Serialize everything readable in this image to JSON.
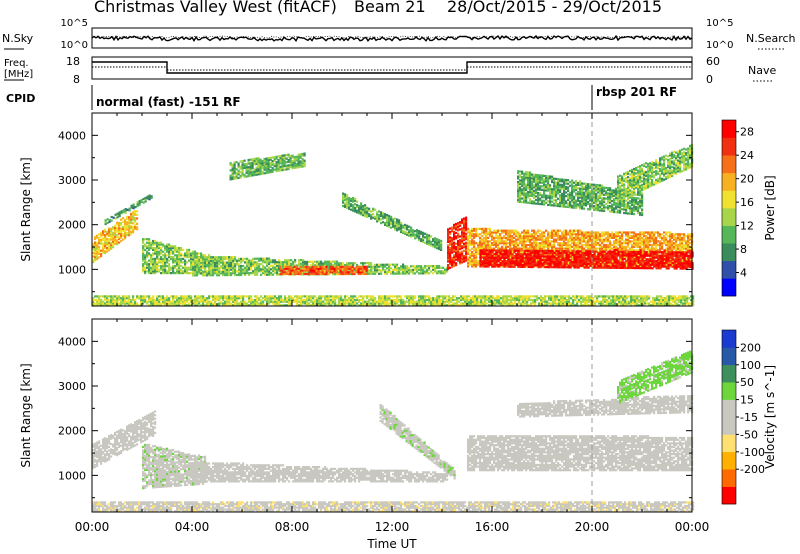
{
  "header": {
    "station": "Christmas Valley West (fitACF)",
    "beam": "Beam 21",
    "date_range": "28/Oct/2015 - 29/Oct/2015"
  },
  "noise_panel": {
    "left_label": "N.Sky",
    "right_label": "N.Search",
    "left_ticks": [
      "10^5",
      "10^0"
    ],
    "right_ticks": [
      "10^5",
      "10^0"
    ]
  },
  "freq_panel": {
    "left_label_1": "Freq.",
    "left_label_2": "[MHz]",
    "right_label": "Nave",
    "left_ticks": [
      "18",
      "8"
    ],
    "right_ticks": [
      "60",
      "0"
    ]
  },
  "cpid": {
    "label": "CPID",
    "mode1": "normal (fast) -151 RF",
    "mode2": "rbsp 201 RF"
  },
  "x_ticks": [
    "00:00",
    "04:00",
    "08:00",
    "12:00",
    "16:00",
    "20:00",
    "00:00"
  ],
  "x_label": "Time UT",
  "colors": {
    "power": [
      "#0000ff",
      "#2f4fa8",
      "#3b8c5c",
      "#55b65a",
      "#a8d64a",
      "#f0e030",
      "#f7b020",
      "#f57018",
      "#f03010",
      "#ff0000"
    ],
    "velocity": [
      "#ff0000",
      "#ff6a00",
      "#ffb000",
      "#ffe070",
      "#c8c8c0",
      "#c8c8c0",
      "#6cd63c",
      "#3e8f5c",
      "#2858a8",
      "#1a3ad0"
    ]
  },
  "chart_data": [
    {
      "type": "heatmap",
      "name": "power",
      "ylabel": "Slant Range [km]",
      "xlabel": "",
      "x_range_hours": [
        0,
        24
      ],
      "ylim": [
        180,
        4500
      ],
      "y_ticks": [
        1000,
        2000,
        3000,
        4000
      ],
      "colorbar": {
        "label": "Power [dB]",
        "ticks": [
          4,
          8,
          12,
          16,
          20,
          24,
          28
        ],
        "range": [
          0,
          30
        ]
      },
      "echo_regions": [
        {
          "t": [
            0.0,
            1.8
          ],
          "r0": [
            1150,
            1900
          ],
          "r1": [
            1700,
            2350
          ],
          "v": 18
        },
        {
          "t": [
            0.5,
            2.4
          ],
          "r0": [
            2000,
            2600
          ],
          "r1": [
            2100,
            2700
          ],
          "v": 9
        },
        {
          "t": [
            2.0,
            5.0
          ],
          "r0": [
            900,
            900
          ],
          "r1": [
            1700,
            1250
          ],
          "v": 12
        },
        {
          "t": [
            4.0,
            14.2
          ],
          "r0": [
            850,
            900
          ],
          "r1": [
            1300,
            1050
          ],
          "v": 12
        },
        {
          "t": [
            7.5,
            11.0
          ],
          "r0": [
            880,
            880
          ],
          "r1": [
            1050,
            1050
          ],
          "v": 24
        },
        {
          "t": [
            10.0,
            14.0
          ],
          "r0": [
            2400,
            1400
          ],
          "r1": [
            2700,
            1600
          ],
          "v": 10
        },
        {
          "t": [
            14.2,
            15.0
          ],
          "r0": [
            1000,
            1200
          ],
          "r1": [
            1900,
            2200
          ],
          "v": 26
        },
        {
          "t": [
            15.0,
            24.0
          ],
          "r0": [
            1050,
            1050
          ],
          "r1": [
            1900,
            1800
          ],
          "v": 20
        },
        {
          "t": [
            15.5,
            24.0
          ],
          "r0": [
            1050,
            1000
          ],
          "r1": [
            1450,
            1400
          ],
          "v": 28
        },
        {
          "t": [
            17.0,
            22.0
          ],
          "r0": [
            2500,
            2200
          ],
          "r1": [
            3200,
            2700
          ],
          "v": 10
        },
        {
          "t": [
            21.0,
            24.0
          ],
          "r0": [
            2500,
            3300
          ],
          "r1": [
            3100,
            3800
          ],
          "v": 12
        },
        {
          "t": [
            5.5,
            8.5
          ],
          "r0": [
            3000,
            3300
          ],
          "r1": [
            3400,
            3600
          ],
          "v": 11
        },
        {
          "t": [
            0.0,
            24.0
          ],
          "r0": [
            180,
            180
          ],
          "r1": [
            420,
            420
          ],
          "v": 14
        }
      ]
    },
    {
      "type": "heatmap",
      "name": "velocity",
      "ylabel": "Slant Range [km]",
      "xlabel": "Time UT",
      "x_range_hours": [
        0,
        24
      ],
      "ylim": [
        180,
        4500
      ],
      "y_ticks": [
        1000,
        2000,
        3000,
        4000
      ],
      "colorbar": {
        "label": "Velocity [m s^-1]",
        "ticks": [
          200,
          100,
          50,
          15,
          -15,
          -50,
          -100,
          -200
        ],
        "range": [
          -250,
          250
        ]
      },
      "echo_regions": [
        {
          "t": [
            0.0,
            2.5
          ],
          "r0": [
            1150,
            1900
          ],
          "r1": [
            1700,
            2450
          ],
          "v": 0
        },
        {
          "t": [
            2.0,
            4.5
          ],
          "r0": [
            700,
            800
          ],
          "r1": [
            1700,
            1400
          ],
          "v": 40
        },
        {
          "t": [
            4.0,
            14.2
          ],
          "r0": [
            850,
            850
          ],
          "r1": [
            1300,
            1050
          ],
          "v": 0
        },
        {
          "t": [
            11.5,
            14.5
          ],
          "r0": [
            2200,
            900
          ],
          "r1": [
            2600,
            1100
          ],
          "v": 40
        },
        {
          "t": [
            15.0,
            24.0
          ],
          "r0": [
            1100,
            1100
          ],
          "r1": [
            1900,
            1850
          ],
          "v": 0
        },
        {
          "t": [
            17.0,
            24.0
          ],
          "r0": [
            2300,
            2400
          ],
          "r1": [
            2600,
            2800
          ],
          "v": 5
        },
        {
          "t": [
            21.0,
            24.0
          ],
          "r0": [
            2600,
            3300
          ],
          "r1": [
            3100,
            3800
          ],
          "v": 60
        },
        {
          "t": [
            0.0,
            24.0
          ],
          "r0": [
            180,
            180
          ],
          "r1": [
            420,
            420
          ],
          "v": -40
        }
      ]
    }
  ]
}
